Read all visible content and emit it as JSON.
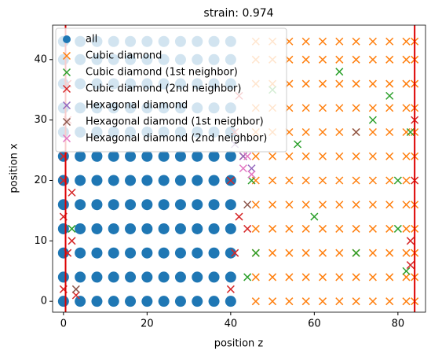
{
  "chart_data": {
    "type": "scatter",
    "title": "strain: 0.974",
    "xlabel": "position z",
    "ylabel": "position x",
    "xlim": [
      -2.6,
      86.6
    ],
    "ylim": [
      -1.8,
      45.7
    ],
    "xticks": [
      0,
      20,
      40,
      60,
      80
    ],
    "yticks": [
      0,
      10,
      20,
      30,
      40
    ],
    "legend": "upper left",
    "vlines": {
      "color": "#dd0000",
      "values": [
        0.5,
        84
      ]
    },
    "series": [
      {
        "name": "all",
        "color": "#1f77b4",
        "marker": "o",
        "x": [
          0,
          4,
          8,
          12,
          16,
          20,
          24,
          28,
          32,
          36,
          40,
          0,
          4,
          8,
          12,
          16,
          20,
          24,
          28,
          32,
          36,
          40,
          0,
          4,
          8,
          12,
          16,
          20,
          24,
          28,
          32,
          36,
          40,
          0,
          4,
          8,
          12,
          16,
          20,
          24,
          28,
          32,
          36,
          40,
          0,
          4,
          8,
          12,
          16,
          20,
          24,
          28,
          32,
          36,
          40,
          0,
          4,
          8,
          12,
          16,
          20,
          24,
          28,
          32,
          36,
          40,
          0,
          4,
          8,
          12,
          16,
          20,
          24,
          28,
          32,
          36,
          40,
          0,
          4,
          8,
          12,
          16,
          20,
          24,
          28,
          32,
          36,
          40,
          0,
          4,
          8,
          12,
          16,
          20,
          24,
          28,
          32,
          36,
          40,
          0,
          4,
          8,
          12,
          16,
          20,
          24,
          28,
          32,
          36,
          40,
          0,
          4,
          8,
          12,
          16,
          20,
          24,
          28,
          32,
          36,
          40,
          0,
          4,
          8,
          12,
          16,
          20,
          24,
          28,
          32,
          36,
          40
        ],
        "y": [
          0,
          0,
          0,
          0,
          0,
          0,
          0,
          0,
          0,
          0,
          0,
          4,
          4,
          4,
          4,
          4,
          4,
          4,
          4,
          4,
          4,
          4,
          8,
          8,
          8,
          8,
          8,
          8,
          8,
          8,
          8,
          8,
          8,
          12,
          12,
          12,
          12,
          12,
          12,
          12,
          12,
          12,
          12,
          12,
          16,
          16,
          16,
          16,
          16,
          16,
          16,
          16,
          16,
          16,
          16,
          20,
          20,
          20,
          20,
          20,
          20,
          20,
          20,
          20,
          20,
          20,
          24,
          24,
          24,
          24,
          24,
          24,
          24,
          24,
          24,
          24,
          24,
          28,
          28,
          28,
          28,
          28,
          28,
          28,
          28,
          28,
          28,
          28,
          32,
          32,
          32,
          32,
          32,
          32,
          32,
          32,
          32,
          32,
          32,
          36,
          36,
          36,
          36,
          36,
          36,
          36,
          36,
          36,
          36,
          36,
          40,
          40,
          40,
          40,
          40,
          40,
          40,
          40,
          40,
          40,
          40,
          43,
          43,
          43,
          43,
          43,
          43,
          43,
          43,
          43,
          43,
          43
        ]
      },
      {
        "name": "Cubic diamond",
        "color": "#ff7f0e",
        "marker": "x",
        "x": [
          46,
          50,
          54,
          58,
          62,
          66,
          70,
          74,
          78,
          82,
          84,
          46,
          50,
          54,
          58,
          62,
          66,
          70,
          74,
          78,
          82,
          84,
          46,
          50,
          54,
          58,
          62,
          66,
          70,
          74,
          78,
          82,
          84,
          46,
          50,
          54,
          58,
          62,
          66,
          70,
          74,
          78,
          82,
          84,
          46,
          50,
          54,
          58,
          62,
          66,
          70,
          74,
          78,
          82,
          84,
          46,
          50,
          54,
          58,
          62,
          66,
          70,
          74,
          78,
          82,
          84,
          46,
          50,
          54,
          58,
          62,
          66,
          70,
          74,
          78,
          82,
          84,
          46,
          50,
          54,
          58,
          62,
          66,
          70,
          74,
          78,
          82,
          84,
          46,
          50,
          54,
          58,
          62,
          66,
          70,
          74,
          78,
          82,
          84,
          46,
          50,
          54,
          58,
          62,
          66,
          70,
          74,
          78,
          82,
          84,
          46,
          50,
          54,
          58,
          62,
          66,
          70,
          74,
          78,
          82,
          84,
          46,
          50,
          54,
          58,
          62,
          66,
          70,
          74,
          78,
          82,
          84
        ],
        "y": [
          0,
          0,
          0,
          0,
          0,
          0,
          0,
          0,
          0,
          0,
          0,
          4,
          4,
          4,
          4,
          4,
          4,
          4,
          4,
          4,
          4,
          4,
          8,
          8,
          8,
          8,
          8,
          8,
          8,
          8,
          8,
          8,
          8,
          12,
          12,
          12,
          12,
          12,
          12,
          12,
          12,
          12,
          12,
          12,
          16,
          16,
          16,
          16,
          16,
          16,
          16,
          16,
          16,
          16,
          16,
          20,
          20,
          20,
          20,
          20,
          20,
          20,
          20,
          20,
          20,
          20,
          24,
          24,
          24,
          24,
          24,
          24,
          24,
          24,
          24,
          24,
          24,
          28,
          28,
          28,
          28,
          28,
          28,
          28,
          28,
          28,
          28,
          28,
          32,
          32,
          32,
          32,
          32,
          32,
          32,
          32,
          32,
          32,
          32,
          36,
          36,
          36,
          36,
          36,
          36,
          36,
          36,
          36,
          36,
          36,
          40,
          40,
          40,
          40,
          40,
          40,
          40,
          40,
          40,
          40,
          40,
          43,
          43,
          43,
          43,
          43,
          43,
          43,
          43,
          43,
          43,
          43
        ]
      },
      {
        "name": "Cubic diamond (1st neighbor)",
        "color": "#2ca02c",
        "marker": "x",
        "x": [
          46,
          50,
          60,
          70,
          74,
          80,
          82,
          83,
          45,
          66,
          56,
          78,
          2,
          44,
          80
        ],
        "y": [
          8,
          35,
          14,
          8,
          30,
          20,
          5,
          28,
          20,
          38,
          26,
          34,
          12,
          4,
          12
        ]
      },
      {
        "name": "Cubic diamond (2nd neighbor)",
        "color": "#d62728",
        "marker": "x",
        "x": [
          0,
          1,
          0,
          2,
          0,
          1,
          3,
          0,
          2,
          1,
          40,
          41,
          42,
          40,
          43,
          41,
          42,
          44,
          83,
          84,
          84,
          83
        ],
        "y": [
          2,
          8,
          14,
          18,
          24,
          30,
          1,
          20,
          10,
          36,
          2,
          8,
          14,
          20,
          24,
          28,
          34,
          12,
          10,
          20,
          30,
          6
        ]
      },
      {
        "name": "Hexagonal diamond",
        "color": "#9467bd",
        "marker": "x",
        "x": [
          41,
          43,
          45
        ],
        "y": [
          26,
          24,
          22
        ]
      },
      {
        "name": "Hexagonal diamond (1st neighbor)",
        "color": "#8c564b",
        "marker": "x",
        "x": [
          44,
          70,
          3
        ],
        "y": [
          16,
          28,
          2
        ]
      },
      {
        "name": "Hexagonal diamond (2nd neighbor)",
        "color": "#e377c2",
        "marker": "x",
        "x": [
          43,
          44,
          45
        ],
        "y": [
          22,
          24,
          21
        ]
      }
    ]
  }
}
